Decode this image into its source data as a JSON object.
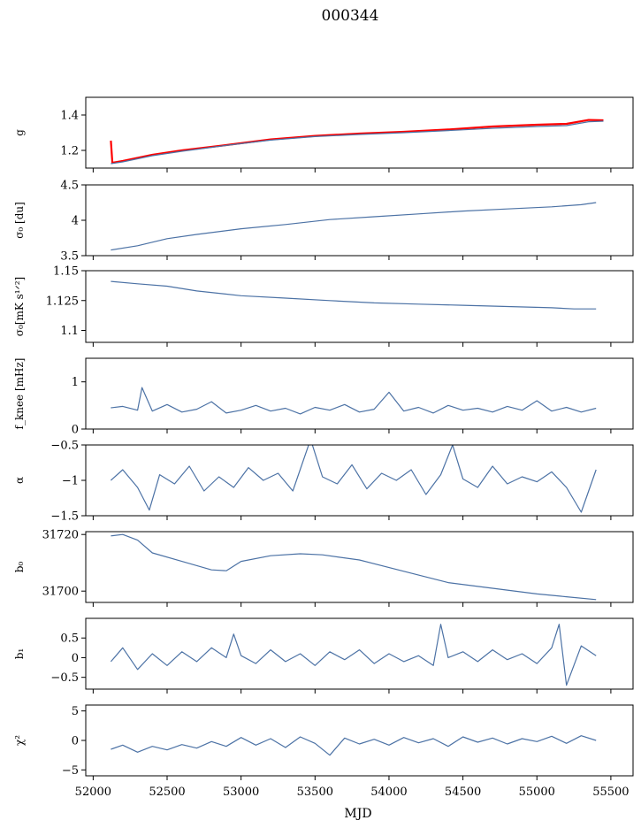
{
  "figure": {
    "title": "000344",
    "xlabel": "MJD"
  },
  "chart_data": {
    "type": "line",
    "shared_x": {
      "label": "MJD",
      "range": [
        51950,
        55650
      ],
      "ticks": [
        52000,
        52500,
        53000,
        53500,
        54000,
        54500,
        55000,
        55500
      ]
    },
    "panels": [
      {
        "id": "g",
        "ylabel": "g",
        "ylim": [
          1.1,
          1.5
        ],
        "yticks": [
          1.2,
          1.4
        ],
        "series": [
          {
            "color": "#ff0000",
            "x": [
              52120,
              52130,
              52200,
              52400,
              52600,
              52900,
              53200,
              53500,
              53800,
              54100,
              54400,
              54700,
              55000,
              55200,
              55350,
              55450
            ],
            "y": [
              1.255,
              1.13,
              1.14,
              1.175,
              1.2,
              1.23,
              1.262,
              1.282,
              1.295,
              1.305,
              1.318,
              1.335,
              1.345,
              1.35,
              1.372,
              1.37
            ]
          },
          {
            "color": "#4c72a5",
            "x": [
              52120,
              52200,
              52400,
              52600,
              52900,
              53200,
              53500,
              53800,
              54100,
              54400,
              54700,
              55000,
              55200,
              55350,
              55450
            ],
            "y": [
              1.125,
              1.135,
              1.17,
              1.195,
              1.228,
              1.258,
              1.278,
              1.29,
              1.3,
              1.312,
              1.325,
              1.335,
              1.34,
              1.362,
              1.365
            ]
          }
        ]
      },
      {
        "id": "sigma0-du",
        "ylabel": "σ₀ [du]",
        "ylim": [
          3.5,
          4.5
        ],
        "yticks": [
          3.5,
          4.0,
          4.5
        ],
        "series": [
          {
            "color": "#4c72a5",
            "x": [
              52120,
              52300,
              52500,
              52700,
              53000,
              53300,
              53600,
              53900,
              54200,
              54500,
              54800,
              55100,
              55300,
              55400
            ],
            "y": [
              3.58,
              3.64,
              3.74,
              3.8,
              3.88,
              3.94,
              4.01,
              4.05,
              4.09,
              4.13,
              4.16,
              4.19,
              4.22,
              4.25
            ]
          }
        ]
      },
      {
        "id": "sigma0-mks",
        "ylabel": "σ₀[mK s¹ᐟ²]",
        "ylim": [
          1.09,
          1.15
        ],
        "yticks": [
          1.1,
          1.125,
          1.15
        ],
        "series": [
          {
            "color": "#4c72a5",
            "x": [
              52120,
              52300,
              52500,
              52700,
              53000,
              53300,
              53600,
              53900,
              54200,
              54500,
              54800,
              55100,
              55250,
              55400
            ],
            "y": [
              1.141,
              1.139,
              1.137,
              1.133,
              1.129,
              1.127,
              1.125,
              1.123,
              1.122,
              1.121,
              1.12,
              1.119,
              1.118,
              1.118
            ]
          }
        ]
      },
      {
        "id": "fknee",
        "ylabel": "f_knee [mHz]",
        "ylim": [
          0,
          1.5
        ],
        "yticks": [
          0,
          1
        ],
        "series": [
          {
            "color": "#4c72a5",
            "x": [
              52120,
              52200,
              52300,
              52330,
              52400,
              52500,
              52600,
              52700,
              52800,
              52900,
              53000,
              53100,
              53200,
              53300,
              53400,
              53500,
              53600,
              53700,
              53800,
              53900,
              54000,
              54100,
              54200,
              54300,
              54400,
              54500,
              54600,
              54700,
              54800,
              54900,
              55000,
              55100,
              55200,
              55300,
              55400
            ],
            "y": [
              0.45,
              0.48,
              0.4,
              0.88,
              0.38,
              0.52,
              0.36,
              0.42,
              0.58,
              0.34,
              0.4,
              0.5,
              0.38,
              0.44,
              0.32,
              0.46,
              0.4,
              0.52,
              0.36,
              0.42,
              0.78,
              0.38,
              0.46,
              0.34,
              0.5,
              0.4,
              0.44,
              0.36,
              0.48,
              0.4,
              0.6,
              0.38,
              0.46,
              0.36,
              0.44
            ]
          }
        ]
      },
      {
        "id": "alpha",
        "ylabel": "α",
        "ylim": [
          -1.5,
          -0.5
        ],
        "yticks": [
          -1.5,
          -1.0,
          -0.5
        ],
        "series": [
          {
            "color": "#4c72a5",
            "x": [
              52120,
              52200,
              52300,
              52380,
              52450,
              52550,
              52650,
              52750,
              52850,
              52950,
              53050,
              53150,
              53250,
              53350,
              53470,
              53550,
              53650,
              53750,
              53850,
              53950,
              54050,
              54150,
              54250,
              54350,
              54430,
              54500,
              54600,
              54700,
              54800,
              54900,
              55000,
              55100,
              55200,
              55300,
              55400
            ],
            "y": [
              -1.0,
              -0.85,
              -1.1,
              -1.42,
              -0.92,
              -1.05,
              -0.8,
              -1.15,
              -0.95,
              -1.1,
              -0.82,
              -1.0,
              -0.9,
              -1.15,
              -0.42,
              -0.95,
              -1.05,
              -0.78,
              -1.12,
              -0.9,
              -1.0,
              -0.85,
              -1.2,
              -0.92,
              -0.5,
              -0.98,
              -1.1,
              -0.8,
              -1.05,
              -0.95,
              -1.02,
              -0.88,
              -1.1,
              -1.45,
              -0.85
            ]
          }
        ]
      },
      {
        "id": "b0",
        "ylabel": "b₀",
        "ylim": [
          31696,
          31721
        ],
        "yticks": [
          31700,
          31720
        ],
        "series": [
          {
            "color": "#4c72a5",
            "x": [
              52120,
              52200,
              52300,
              52400,
              52600,
              52800,
              52900,
              53000,
              53200,
              53400,
              53550,
              53800,
              54100,
              54400,
              54700,
              55000,
              55200,
              55400
            ],
            "y": [
              31719.5,
              31720,
              31718,
              31713.5,
              31710.5,
              31707.5,
              31707.2,
              31710.5,
              31712.5,
              31713.2,
              31712.8,
              31711,
              31707,
              31703,
              31701,
              31699,
              31698,
              31697
            ]
          }
        ]
      },
      {
        "id": "b1",
        "ylabel": "b₁",
        "ylim": [
          -0.8,
          1.0
        ],
        "yticks": [
          -0.5,
          0.0,
          0.5
        ],
        "series": [
          {
            "color": "#4c72a5",
            "x": [
              52120,
              52200,
              52300,
              52400,
              52500,
              52600,
              52700,
              52800,
              52900,
              52950,
              53000,
              53100,
              53200,
              53300,
              53400,
              53500,
              53600,
              53700,
              53800,
              53900,
              54000,
              54100,
              54200,
              54300,
              54350,
              54400,
              54500,
              54600,
              54700,
              54800,
              54900,
              55000,
              55100,
              55150,
              55200,
              55300,
              55400
            ],
            "y": [
              -0.1,
              0.25,
              -0.3,
              0.1,
              -0.2,
              0.15,
              -0.1,
              0.25,
              0.0,
              0.6,
              0.05,
              -0.15,
              0.2,
              -0.1,
              0.1,
              -0.2,
              0.15,
              -0.05,
              0.2,
              -0.15,
              0.1,
              -0.1,
              0.05,
              -0.2,
              0.85,
              0.0,
              0.15,
              -0.1,
              0.2,
              -0.05,
              0.1,
              -0.15,
              0.25,
              0.85,
              -0.7,
              0.3,
              0.05
            ]
          }
        ]
      },
      {
        "id": "chi2",
        "ylabel": "χ²",
        "ylim": [
          -6,
          6
        ],
        "yticks": [
          -5,
          0,
          5
        ],
        "series": [
          {
            "color": "#4c72a5",
            "x": [
              52120,
              52200,
              52300,
              52400,
              52500,
              52600,
              52700,
              52800,
              52900,
              53000,
              53100,
              53200,
              53300,
              53400,
              53500,
              53600,
              53700,
              53800,
              53900,
              54000,
              54100,
              54200,
              54300,
              54400,
              54500,
              54600,
              54700,
              54800,
              54900,
              55000,
              55100,
              55200,
              55300,
              55400
            ],
            "y": [
              -1.5,
              -0.8,
              -2.0,
              -1.0,
              -1.6,
              -0.7,
              -1.3,
              -0.2,
              -1.0,
              0.5,
              -0.8,
              0.3,
              -1.2,
              0.6,
              -0.5,
              -2.5,
              0.4,
              -0.6,
              0.2,
              -0.8,
              0.5,
              -0.4,
              0.3,
              -1.0,
              0.6,
              -0.3,
              0.4,
              -0.6,
              0.3,
              -0.2,
              0.7,
              -0.5,
              0.8,
              0.0
            ]
          }
        ]
      }
    ]
  }
}
